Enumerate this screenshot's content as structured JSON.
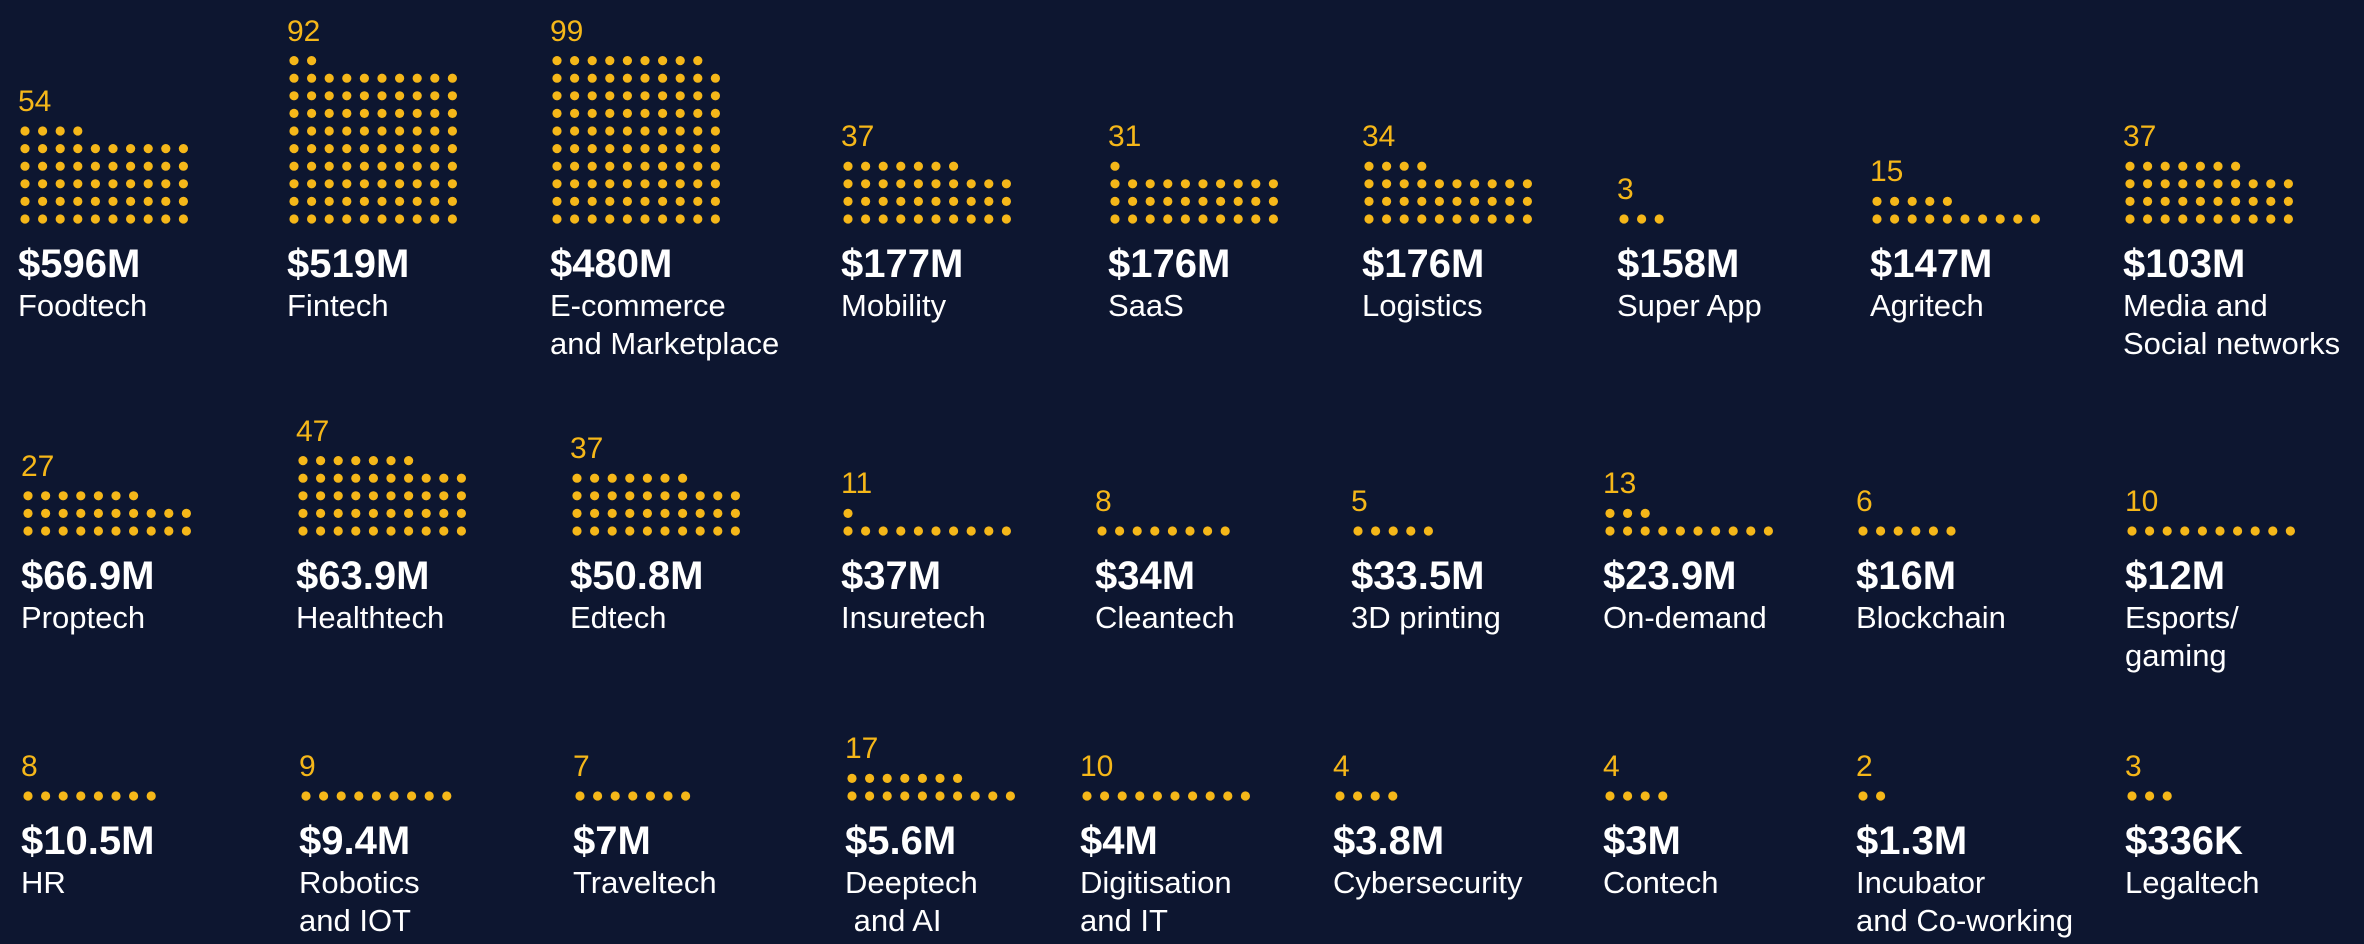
{
  "chart_data": {
    "type": "waffle",
    "color": "#f5b719",
    "columns": 10,
    "categories": [
      "Foodtech",
      "Fintech",
      "E-commerce\nand Marketplace",
      "Mobility",
      "SaaS",
      "Logistics",
      "Super App",
      "Agritech",
      "Media and\nSocial networks",
      "Proptech",
      "Healthtech",
      "Edtech",
      "Insuretech",
      "Cleantech",
      "3D printing",
      "On-demand",
      "Blockchain",
      "Esports/\ngaming",
      "HR",
      "Robotics\nand IOT",
      "Traveltech",
      "Deeptech\n and AI",
      "Digitisation\nand IT",
      "Cybersecurity",
      "Contech",
      "Incubator\nand Co-working",
      "Legaltech"
    ],
    "values": [
      54,
      92,
      99,
      37,
      31,
      34,
      3,
      15,
      37,
      27,
      47,
      37,
      11,
      8,
      5,
      13,
      6,
      10,
      8,
      9,
      7,
      17,
      10,
      4,
      4,
      2,
      3
    ],
    "amounts": [
      "$596M",
      "$519M",
      "$480M",
      "$177M",
      "$176M",
      "$176M",
      "$158M",
      "$147M",
      "$103M",
      "$66.9M",
      "$63.9M",
      "$50.8M",
      "$37M",
      "$34M",
      "$33.5M",
      "$23.9M",
      "$16M",
      "$12M",
      "$10.5M",
      "$9.4M",
      "$7M",
      "$5.6M",
      "$4M",
      "$3.8M",
      "$3M",
      "$1.3M",
      "$336K"
    ]
  }
}
